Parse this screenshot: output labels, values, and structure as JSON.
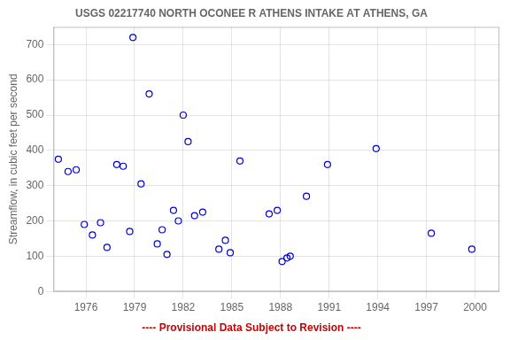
{
  "chart_data": {
    "type": "scatter",
    "title": "USGS 02217740 NORTH OCONEE R ATHENS INTAKE AT ATHENS, GA",
    "ylabel": "Streamflow, in cubic feet per second",
    "annotations": [
      {
        "text": "---- Provisional Data Subject to Revision ----",
        "color": "#cc0000"
      }
    ],
    "x": [
      1974.3,
      1974.9,
      1975.4,
      1975.9,
      1976.4,
      1976.9,
      1977.3,
      1977.9,
      1978.3,
      1978.7,
      1978.9,
      1979.4,
      1979.9,
      1980.4,
      1980.7,
      1981.0,
      1981.4,
      1981.7,
      1982.0,
      1982.3,
      1982.7,
      1983.2,
      1984.2,
      1984.6,
      1984.9,
      1985.5,
      1987.3,
      1987.8,
      1988.1,
      1988.4,
      1988.6,
      1989.6,
      1990.9,
      1993.9,
      1997.3,
      1999.8
    ],
    "values": [
      375,
      340,
      345,
      190,
      160,
      195,
      125,
      360,
      355,
      170,
      720,
      305,
      560,
      135,
      175,
      105,
      230,
      200,
      500,
      425,
      215,
      225,
      120,
      145,
      110,
      370,
      220,
      230,
      85,
      95,
      100,
      270,
      360,
      405,
      165,
      120
    ],
    "color": "#0000cc",
    "marker": "circle",
    "xlim": [
      1974.0,
      2001.5
    ],
    "xticks": [
      1976,
      1979,
      1982,
      1985,
      1988,
      1991,
      1994,
      1997,
      2000
    ],
    "ylim": [
      0,
      750
    ],
    "yticks": [
      0,
      100,
      200,
      300,
      400,
      500,
      600,
      700
    ],
    "grid": true
  }
}
